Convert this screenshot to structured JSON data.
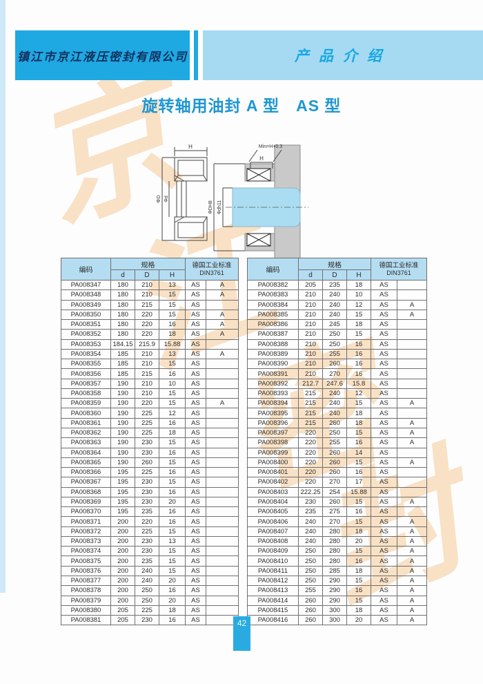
{
  "header": {
    "company": "镇江市京江液压密封有限公司",
    "section": "产品介绍"
  },
  "title": "旋转轴用油封 A 型　AS 型",
  "diagram": {
    "left_labels": {
      "h": "H",
      "outer_dia": "ΦD",
      "inner_dia": "Φd"
    },
    "right_labels": {
      "min": "Min=H+0.3",
      "h": "H",
      "bore": "ΦDH8",
      "shaft": "Φdh11"
    }
  },
  "table_headers": {
    "code": "编码",
    "spec": "规格",
    "d": "d",
    "D": "D",
    "H": "H",
    "standard_line1": "德国工业标准",
    "standard_line2": "DIN3761"
  },
  "tables": [
    {
      "rows": [
        [
          "PA008347",
          "180",
          "210",
          "13",
          "AS",
          "A"
        ],
        [
          "PA008348",
          "180",
          "210",
          "15",
          "AS",
          "A"
        ],
        [
          "PA008349",
          "180",
          "215",
          "15",
          "AS",
          ""
        ],
        [
          "PA008350",
          "180",
          "220",
          "15",
          "AS",
          "A"
        ],
        [
          "PA008351",
          "180",
          "220",
          "16",
          "AS",
          "A"
        ],
        [
          "PA008352",
          "180",
          "220",
          "18",
          "AS",
          "A"
        ],
        [
          "PA008353",
          "184.15",
          "215.9",
          "15.88",
          "AS",
          ""
        ],
        [
          "PA008354",
          "185",
          "210",
          "13",
          "AS",
          "A"
        ],
        [
          "PA008355",
          "185",
          "210",
          "15",
          "AS",
          ""
        ],
        [
          "PA008356",
          "185",
          "215",
          "16",
          "AS",
          ""
        ],
        [
          "PA008357",
          "190",
          "210",
          "10",
          "AS",
          ""
        ],
        [
          "PA008358",
          "190",
          "210",
          "15",
          "AS",
          ""
        ],
        [
          "PA008359",
          "190",
          "220",
          "15",
          "AS",
          "A"
        ],
        [
          "PA008360",
          "190",
          "225",
          "12",
          "AS",
          ""
        ],
        [
          "PA008361",
          "190",
          "225",
          "16",
          "AS",
          ""
        ],
        [
          "PA008362",
          "190",
          "225",
          "18",
          "AS",
          ""
        ],
        [
          "PA008363",
          "190",
          "230",
          "15",
          "AS",
          ""
        ],
        [
          "PA008364",
          "190",
          "230",
          "16",
          "AS",
          ""
        ],
        [
          "PA008365",
          "190",
          "260",
          "15",
          "AS",
          ""
        ],
        [
          "PA008366",
          "195",
          "225",
          "16",
          "AS",
          ""
        ],
        [
          "PA008367",
          "195",
          "230",
          "15",
          "AS",
          ""
        ],
        [
          "PA008368",
          "195",
          "230",
          "16",
          "AS",
          ""
        ],
        [
          "PA008369",
          "195",
          "230",
          "20",
          "AS",
          ""
        ],
        [
          "PA008370",
          "195",
          "235",
          "16",
          "AS",
          ""
        ],
        [
          "PA008371",
          "200",
          "220",
          "16",
          "AS",
          ""
        ],
        [
          "PA008372",
          "200",
          "225",
          "15",
          "AS",
          ""
        ],
        [
          "PA008373",
          "200",
          "230",
          "13",
          "AS",
          ""
        ],
        [
          "PA008374",
          "200",
          "230",
          "15",
          "AS",
          ""
        ],
        [
          "PA008375",
          "200",
          "235",
          "15",
          "AS",
          ""
        ],
        [
          "PA008376",
          "200",
          "240",
          "15",
          "AS",
          ""
        ],
        [
          "PA008377",
          "200",
          "240",
          "20",
          "AS",
          ""
        ],
        [
          "PA008378",
          "200",
          "250",
          "16",
          "AS",
          ""
        ],
        [
          "PA008379",
          "200",
          "250",
          "20",
          "AS",
          ""
        ],
        [
          "PA008380",
          "205",
          "225",
          "18",
          "AS",
          ""
        ],
        [
          "PA008381",
          "205",
          "230",
          "16",
          "AS",
          ""
        ]
      ]
    },
    {
      "rows": [
        [
          "PA008382",
          "205",
          "235",
          "18",
          "AS",
          ""
        ],
        [
          "PA008383",
          "210",
          "240",
          "10",
          "AS",
          ""
        ],
        [
          "PA008384",
          "210",
          "240",
          "12",
          "AS",
          "A"
        ],
        [
          "PA008385",
          "210",
          "240",
          "15",
          "AS",
          "A"
        ],
        [
          "PA008386",
          "210",
          "245",
          "18",
          "AS",
          ""
        ],
        [
          "PA008387",
          "210",
          "250",
          "15",
          "AS",
          ""
        ],
        [
          "PA008388",
          "210",
          "250",
          "16",
          "AS",
          ""
        ],
        [
          "PA008389",
          "210",
          "255",
          "16",
          "AS",
          ""
        ],
        [
          "PA008390",
          "210",
          "260",
          "16",
          "AS",
          ""
        ],
        [
          "PA008391",
          "210",
          "270",
          "16",
          "AS",
          ""
        ],
        [
          "PA008392",
          "212.7",
          "247.6",
          "15.8",
          "AS",
          ""
        ],
        [
          "PA008393",
          "215",
          "240",
          "12",
          "AS",
          ""
        ],
        [
          "PA008394",
          "215",
          "240",
          "15",
          "AS",
          "A"
        ],
        [
          "PA008395",
          "215",
          "240",
          "18",
          "AS",
          ""
        ],
        [
          "PA008396",
          "215",
          "260",
          "18",
          "AS",
          "A"
        ],
        [
          "PA008397",
          "220",
          "250",
          "15",
          "AS",
          "A"
        ],
        [
          "PA008398",
          "220",
          "255",
          "16",
          "AS",
          "A"
        ],
        [
          "PA008399",
          "220",
          "260",
          "14",
          "AS",
          ""
        ],
        [
          "PA008400",
          "220",
          "260",
          "15",
          "AS",
          "A"
        ],
        [
          "PA008401",
          "220",
          "260",
          "16",
          "AS",
          ""
        ],
        [
          "PA008402",
          "220",
          "270",
          "17",
          "AS",
          ""
        ],
        [
          "PA008403",
          "222.25",
          "254",
          "15.88",
          "AS",
          ""
        ],
        [
          "PA008404",
          "230",
          "260",
          "15",
          "AS",
          "A"
        ],
        [
          "PA008405",
          "235",
          "275",
          "16",
          "AS",
          ""
        ],
        [
          "PA008406",
          "240",
          "270",
          "15",
          "AS",
          "A"
        ],
        [
          "PA008407",
          "240",
          "280",
          "18",
          "AS",
          "A"
        ],
        [
          "PA008408",
          "240",
          "280",
          "20",
          "AS",
          "A"
        ],
        [
          "PA008409",
          "250",
          "280",
          "15",
          "AS",
          "A"
        ],
        [
          "PA008410",
          "250",
          "280",
          "16",
          "AS",
          "A"
        ],
        [
          "PA008411",
          "250",
          "285",
          "18",
          "AS",
          "A"
        ],
        [
          "PA008412",
          "250",
          "290",
          "15",
          "AS",
          "A"
        ],
        [
          "PA008413",
          "255",
          "290",
          "16",
          "AS",
          "A"
        ],
        [
          "PA008414",
          "260",
          "290",
          "15",
          "AS",
          "A"
        ],
        [
          "PA008415",
          "260",
          "300",
          "18",
          "AS",
          "A"
        ],
        [
          "PA008416",
          "260",
          "300",
          "20",
          "AS",
          "A"
        ]
      ]
    }
  ],
  "watermark": {
    "char1": "京",
    "char2": "江",
    "char3": "密",
    "char4": "封"
  },
  "footer": {
    "page_number": "42"
  },
  "colors": {
    "header_dark_blue": "#1ea9e3",
    "header_light_blue": "#a6daf2",
    "company_text": "#10305e",
    "section_text": "#18a8e2",
    "title_blue": "#1e96d2",
    "table_header_bg": "#b5ddf2",
    "page_marker_blue": "#29abe2",
    "watermark_orange": "#f5cb98",
    "shaft_fill": "#aadcf2"
  }
}
